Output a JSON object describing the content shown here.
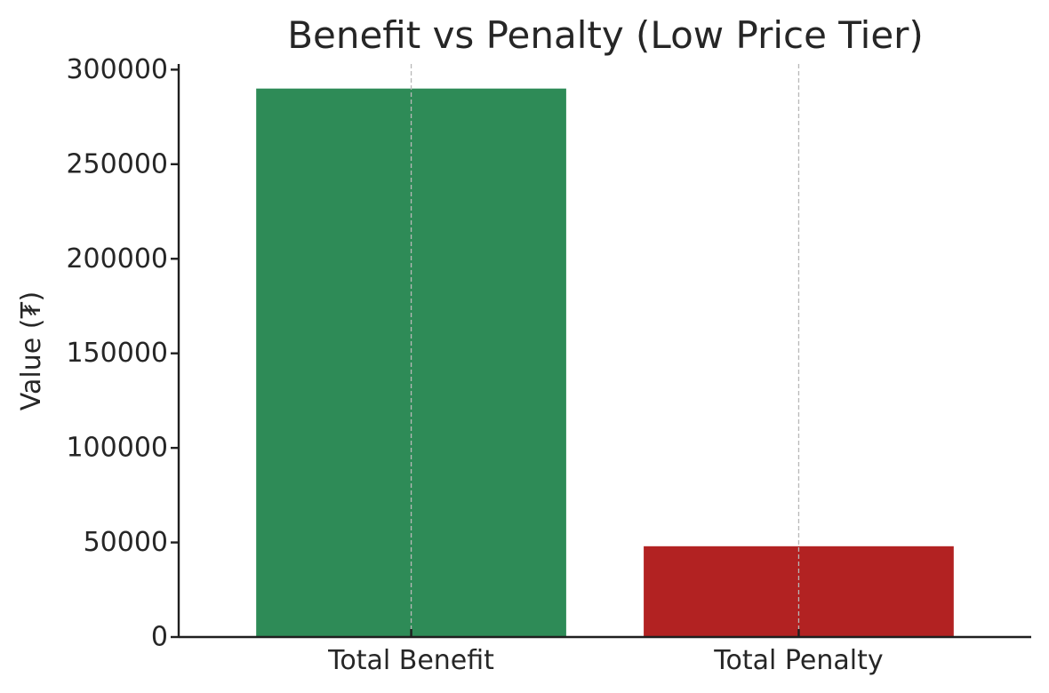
{
  "chart_data": {
    "type": "bar",
    "title": "Benefit vs Penalty (Low Price Tier)",
    "xlabel": "",
    "ylabel": "Value (₮)",
    "categories": [
      "Total Benefit",
      "Total Penalty"
    ],
    "values": [
      290000,
      48000
    ],
    "colors": [
      "#2e8b57",
      "#b22222"
    ],
    "ylim": [
      0,
      303000
    ],
    "yticks": [
      0,
      50000,
      100000,
      150000,
      200000,
      250000,
      300000
    ],
    "grid": "x-dashed"
  }
}
